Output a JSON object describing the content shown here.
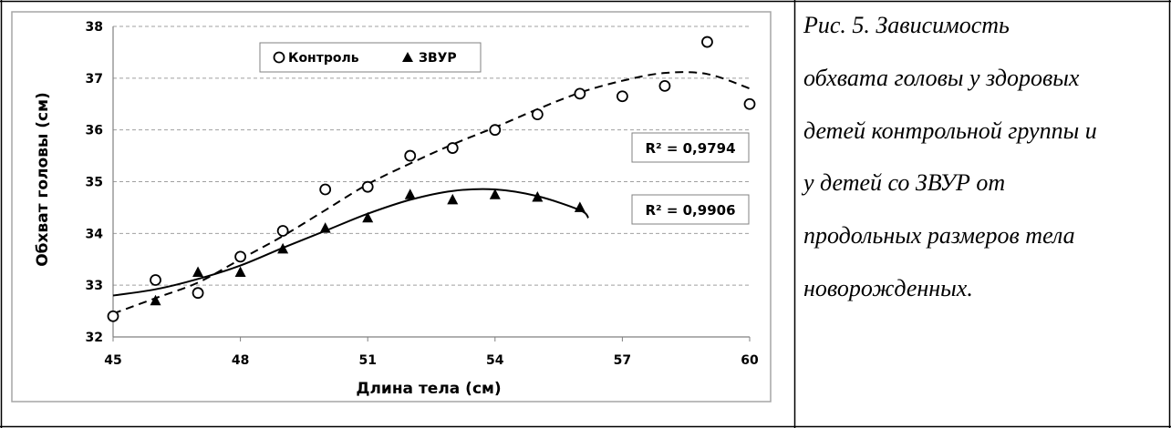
{
  "caption": {
    "lines": [
      "Рис. 5. Зависимость",
      "обхвата  головы  у здоровых",
      "детей контрольной группы и",
      "у детей со ЗВУР от",
      "продольных  размеров  тела",
      "новорожденных."
    ]
  },
  "chart_data": {
    "type": "scatter",
    "title": "",
    "xlabel": "Длина тела (см)",
    "ylabel": "Обхват головы (см)",
    "xlim": [
      45,
      60
    ],
    "ylim": [
      32,
      38
    ],
    "xticks": [
      "45",
      "48",
      "51",
      "54",
      "57",
      "60"
    ],
    "yticks": [
      "32",
      "33",
      "34",
      "35",
      "36",
      "37",
      "38"
    ],
    "grid": "horizontal dashed",
    "legend_position": "top-left",
    "series": [
      {
        "name": "Контроль",
        "marker": "circle-open",
        "trend_style": "dashed",
        "r2_label": "R² = 0,9794",
        "x": [
          45,
          46,
          47,
          48,
          49,
          50,
          51,
          52,
          53,
          54,
          55,
          56,
          57,
          58,
          59,
          60
        ],
        "y": [
          32.4,
          33.1,
          32.85,
          33.55,
          34.05,
          34.85,
          34.9,
          35.5,
          35.65,
          36.0,
          36.3,
          36.7,
          36.65,
          36.85,
          37.7,
          36.5
        ]
      },
      {
        "name": "ЗВУР",
        "marker": "triangle-filled",
        "trend_style": "solid",
        "r2_label": "R² = 0,9906",
        "x": [
          46,
          47,
          48,
          49,
          50,
          51,
          52,
          53,
          54,
          55,
          56
        ],
        "y": [
          32.7,
          33.25,
          33.25,
          33.7,
          34.1,
          34.3,
          34.75,
          34.65,
          34.75,
          34.7,
          34.5
        ]
      }
    ],
    "trendlines": [
      {
        "series": "Контроль",
        "x": [
          45,
          46,
          47,
          48,
          49,
          50,
          51,
          52,
          53,
          54,
          55,
          56,
          57,
          58,
          59,
          60
        ],
        "y": [
          32.45,
          32.75,
          33.05,
          33.5,
          33.95,
          34.45,
          34.95,
          35.35,
          35.72,
          36.05,
          36.4,
          36.72,
          36.95,
          37.1,
          37.08,
          36.8
        ]
      },
      {
        "series": "ЗВУР",
        "x": [
          45,
          46,
          47,
          48,
          49,
          50,
          51,
          52,
          53,
          54,
          55,
          56,
          56.2
        ],
        "y": [
          32.8,
          32.92,
          33.12,
          33.38,
          33.72,
          34.05,
          34.38,
          34.65,
          34.82,
          34.85,
          34.72,
          34.45,
          34.3
        ]
      }
    ]
  }
}
